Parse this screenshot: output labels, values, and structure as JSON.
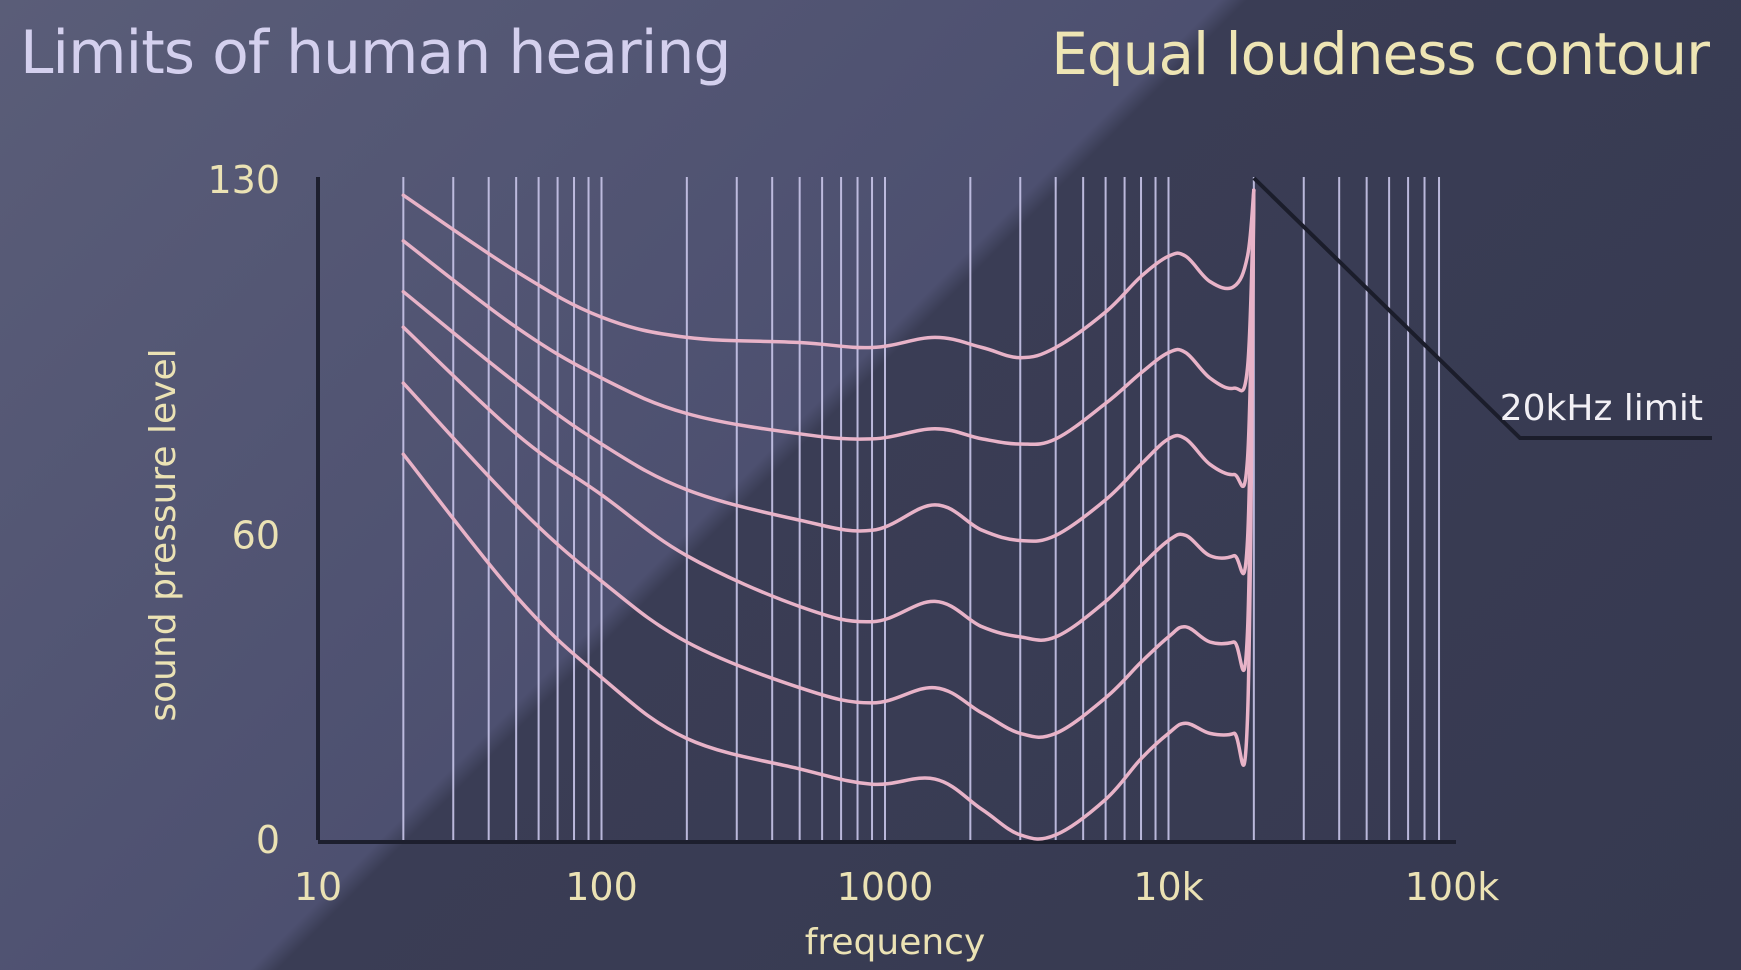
{
  "header": {
    "title": "Limits of human hearing",
    "subtitle": "Equal loudness contour"
  },
  "chart_data": {
    "type": "line",
    "title": "Limits of human hearing",
    "subtitle": "Equal loudness contour",
    "xlabel": "frequency",
    "ylabel": "sound pressure level",
    "x_scale": "log",
    "xlim": [
      10,
      100000
    ],
    "ylim": [
      0,
      130
    ],
    "x_ticks": [
      {
        "value": 10,
        "label": "10"
      },
      {
        "value": 100,
        "label": "100"
      },
      {
        "value": 1000,
        "label": "1000"
      },
      {
        "value": 10000,
        "label": "10k"
      },
      {
        "value": 100000,
        "label": "100k"
      }
    ],
    "y_ticks": [
      {
        "value": 0,
        "label": "0"
      },
      {
        "value": 60,
        "label": "60"
      },
      {
        "value": 130,
        "label": "130"
      }
    ],
    "grid": true,
    "gridlines_x": [
      20,
      30,
      40,
      50,
      60,
      70,
      80,
      90,
      100,
      200,
      300,
      400,
      500,
      600,
      700,
      800,
      900,
      1000,
      2000,
      3000,
      4000,
      5000,
      6000,
      7000,
      8000,
      9000,
      10000,
      20000,
      30000,
      40000,
      50000,
      60000,
      70000,
      80000,
      90000
    ],
    "series": [
      {
        "x": [
          20,
          50,
          100,
          200,
          500,
          900,
          1500,
          2200,
          3000,
          4000,
          6000,
          8000,
          10000,
          11500,
          14000,
          17000,
          19000,
          20000
        ],
        "y": [
          127,
          112,
          103,
          99,
          98,
          97,
          99,
          97,
          95,
          97,
          104,
          111,
          115,
          115,
          110,
          109,
          115,
          128
        ]
      },
      {
        "x": [
          20,
          50,
          100,
          200,
          500,
          900,
          1500,
          2200,
          3000,
          4000,
          6000,
          8000,
          10000,
          11500,
          14000,
          17000,
          19000,
          20000
        ],
        "y": [
          118,
          101,
          91,
          84,
          80,
          79,
          81,
          79,
          78,
          79,
          86,
          92,
          96,
          96,
          91,
          89,
          93,
          128
        ]
      },
      {
        "x": [
          20,
          50,
          100,
          200,
          500,
          900,
          1500,
          2200,
          3000,
          4000,
          6000,
          8000,
          10000,
          11500,
          14000,
          17000,
          19000,
          20000
        ],
        "y": [
          108,
          90,
          78,
          69,
          63,
          61,
          66,
          61,
          59,
          60,
          67,
          74,
          79,
          79,
          74,
          72,
          75,
          128
        ]
      },
      {
        "x": [
          20,
          50,
          100,
          200,
          500,
          900,
          1500,
          2200,
          3000,
          4000,
          6000,
          8000,
          10000,
          11500,
          14000,
          17000,
          19000,
          20000
        ],
        "y": [
          101,
          80,
          68,
          56,
          46,
          43,
          47,
          42,
          40,
          40,
          47,
          54,
          59,
          60,
          56,
          56,
          59,
          128
        ]
      },
      {
        "x": [
          20,
          50,
          100,
          200,
          500,
          900,
          1500,
          2200,
          3000,
          4000,
          6000,
          8000,
          10000,
          11500,
          14000,
          17000,
          19000,
          20000
        ],
        "y": [
          90,
          66,
          51,
          39,
          30,
          27,
          30,
          25,
          21,
          21,
          28,
          35,
          40,
          42,
          39,
          39,
          41,
          128
        ]
      },
      {
        "x": [
          20,
          50,
          100,
          200,
          500,
          900,
          1500,
          2200,
          3000,
          4000,
          6000,
          8000,
          10000,
          11500,
          14000,
          17000,
          19000,
          20000
        ],
        "y": [
          76,
          48,
          32,
          20,
          14,
          11,
          12,
          6,
          1,
          1,
          8,
          16,
          21,
          23,
          21,
          21,
          24,
          128
        ]
      }
    ],
    "annotations": [
      {
        "text": "20kHz limit",
        "x": 20000,
        "y": 130
      }
    ]
  },
  "colors": {
    "background": "#3d4159",
    "curve": "#e8b3c8",
    "gridline": "#c9c6ea",
    "axis": "#1d1f2e",
    "tick_text": "#ebe2b4",
    "title": "#d4d0ee",
    "subtitle": "#eee5b4",
    "annotation_line": "#1b1d2b",
    "annotation_text": "#f2f0f5"
  }
}
